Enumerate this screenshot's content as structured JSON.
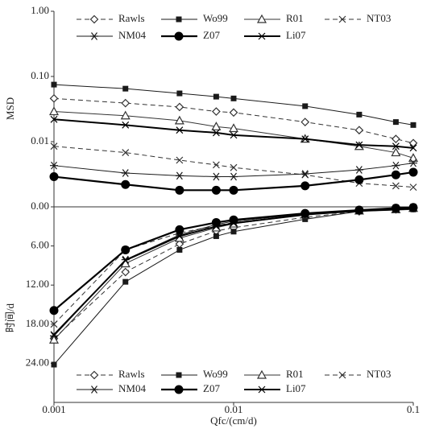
{
  "chart_data": [
    {
      "type": "line",
      "ylabel": "MSD",
      "xlog": true,
      "ylog": true,
      "xlim": [
        0.001,
        0.1
      ],
      "ylim": [
        0.001,
        1
      ],
      "yticks": [
        {
          "value": 1,
          "label": "1.00"
        },
        {
          "value": 0.1,
          "label": "0.10"
        },
        {
          "value": 0.01,
          "label": "0.01"
        },
        {
          "value": 0.001,
          "label": "0.00"
        }
      ],
      "legend": "top",
      "x": [
        0.001,
        0.0025,
        0.005,
        0.008,
        0.01,
        0.025,
        0.05,
        0.08,
        0.1
      ],
      "series": [
        {
          "name": "Rawls",
          "color": "#333333",
          "marker": "diamond",
          "dash": true,
          "width": 1,
          "values": [
            0.046,
            0.039,
            0.034,
            0.029,
            0.028,
            0.02,
            0.015,
            0.011,
            0.0095
          ]
        },
        {
          "name": "Wo99",
          "color": "#1a1a1a",
          "marker": "square",
          "dash": false,
          "width": 1,
          "values": [
            0.075,
            0.065,
            0.055,
            0.049,
            0.046,
            0.035,
            0.026,
            0.02,
            0.018
          ]
        },
        {
          "name": "R01",
          "color": "#333333",
          "marker": "triangle",
          "dash": false,
          "width": 1,
          "values": [
            0.029,
            0.025,
            0.021,
            0.017,
            0.016,
            0.011,
            0.0085,
            0.0068,
            0.0056
          ]
        },
        {
          "name": "NT03",
          "color": "#333333",
          "marker": "x",
          "dash": true,
          "width": 1,
          "values": [
            0.0085,
            0.0068,
            0.0052,
            0.0044,
            0.004,
            0.0031,
            0.0023,
            0.0021,
            0.002
          ]
        },
        {
          "name": "NM04",
          "color": "#1a1a1a",
          "marker": "asterisk",
          "dash": false,
          "width": 1,
          "values": [
            0.0043,
            0.0033,
            0.003,
            0.0029,
            0.0029,
            0.0032,
            0.0037,
            0.0043,
            0.0047
          ]
        },
        {
          "name": "Z07",
          "color": "#000000",
          "marker": "circle",
          "dash": false,
          "width": 2.2,
          "values": [
            0.0029,
            0.0022,
            0.0018,
            0.0018,
            0.0018,
            0.0021,
            0.0026,
            0.0031,
            0.0034
          ]
        },
        {
          "name": "Li07",
          "color": "#000000",
          "marker": "x",
          "dash": false,
          "width": 2,
          "values": [
            0.022,
            0.018,
            0.015,
            0.0137,
            0.0126,
            0.011,
            0.0089,
            0.0085,
            0.008
          ]
        }
      ]
    },
    {
      "type": "line",
      "ylabel": "时间/d",
      "xlabel": "Qfc/(cm/d)",
      "xlog": true,
      "ylog": false,
      "xlim": [
        0.001,
        0.1
      ],
      "ylim": [
        30,
        0
      ],
      "xticks": [
        0.001,
        0.01,
        0.1
      ],
      "yticks": [
        {
          "value": 6,
          "label": "6.00"
        },
        {
          "value": 12,
          "label": "12.00"
        },
        {
          "value": 18,
          "label": "18.00"
        },
        {
          "value": 24,
          "label": "24.00"
        }
      ],
      "legend": "bottom",
      "x": [
        0.001,
        0.0025,
        0.005,
        0.008,
        0.01,
        0.025,
        0.05,
        0.08,
        0.1
      ],
      "series": [
        {
          "name": "Rawls",
          "color": "#333333",
          "marker": "diamond",
          "dash": true,
          "width": 1,
          "values": [
            20.2,
            10.0,
            5.7,
            3.7,
            3.2,
            1.6,
            0.7,
            0.4,
            0.2
          ]
        },
        {
          "name": "Wo99",
          "color": "#1a1a1a",
          "marker": "square",
          "dash": false,
          "width": 1,
          "values": [
            24.2,
            11.5,
            6.6,
            4.5,
            3.8,
            1.9,
            0.7,
            0.5,
            0.4
          ]
        },
        {
          "name": "R01",
          "color": "#333333",
          "marker": "triangle",
          "dash": false,
          "width": 1,
          "values": [
            20.4,
            8.7,
            4.8,
            3.2,
            2.6,
            1.2,
            0.6,
            0.4,
            0.2
          ]
        },
        {
          "name": "NT03",
          "color": "#333333",
          "marker": "x",
          "dash": true,
          "width": 1,
          "values": [
            18.0,
            6.6,
            4.0,
            2.9,
            2.4,
            1.2,
            0.6,
            0.4,
            0.2
          ]
        },
        {
          "name": "NM04",
          "color": "#1a1a1a",
          "marker": "asterisk",
          "dash": false,
          "width": 1,
          "values": [
            19.8,
            8.1,
            4.3,
            2.7,
            2.2,
            1.1,
            0.5,
            0.2,
            0.1
          ]
        },
        {
          "name": "Z07",
          "color": "#000000",
          "marker": "circle",
          "dash": false,
          "width": 2.2,
          "values": [
            15.9,
            6.6,
            3.5,
            2.4,
            2.0,
            1.0,
            0.5,
            0.2,
            0.1
          ]
        },
        {
          "name": "Li07",
          "color": "#000000",
          "marker": "x",
          "dash": false,
          "width": 2,
          "values": [
            19.6,
            8.2,
            4.5,
            3.0,
            2.5,
            1.2,
            0.6,
            0.4,
            0.2
          ]
        }
      ]
    }
  ]
}
